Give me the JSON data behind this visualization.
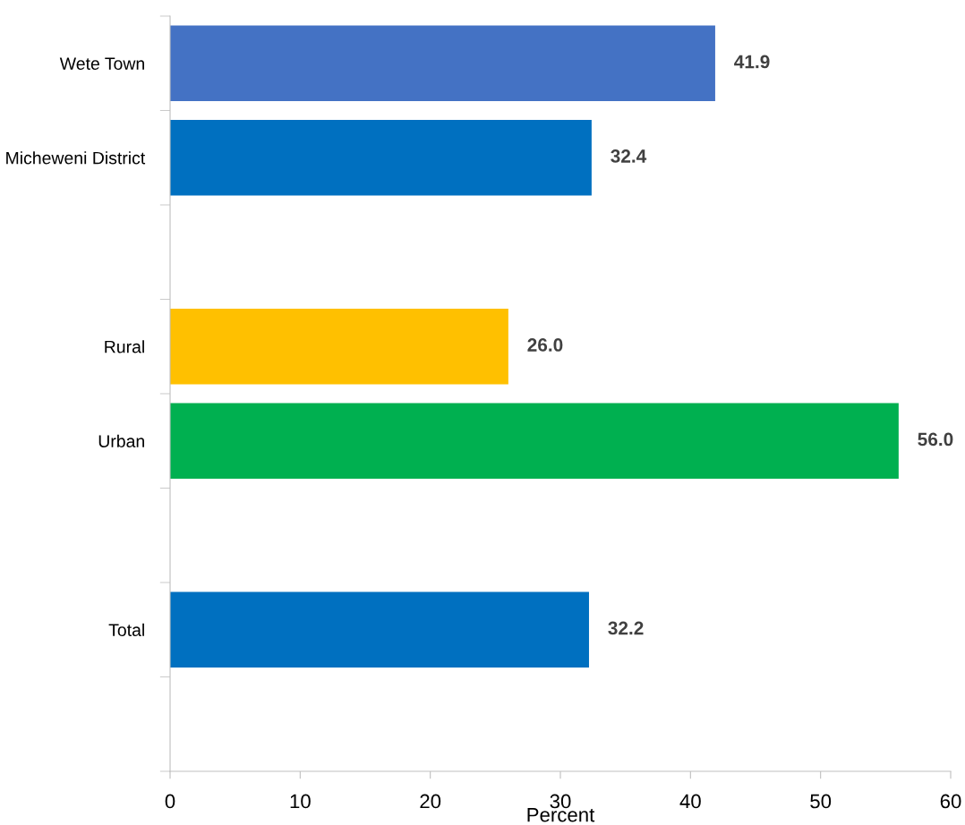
{
  "chart_data": {
    "type": "bar",
    "orientation": "horizontal",
    "xlabel": "Percent",
    "categories": [
      "Wete Town",
      "Micheweni District",
      null,
      "Rural",
      "Urban",
      null,
      "Total",
      null
    ],
    "values": [
      41.9,
      32.4,
      null,
      26.0,
      56.0,
      null,
      32.2,
      null
    ],
    "colors": [
      "#4472c4",
      "#0070c0",
      "#0070c0",
      "#ffc000",
      "#00b050",
      "#0070c0",
      "#0070c0",
      "#0070c0"
    ],
    "value_labels": [
      "41.9",
      "32.4",
      null,
      "26.0",
      "56.0",
      null,
      "32.2",
      null
    ],
    "xlim": [
      0,
      60
    ],
    "xticks": [
      0,
      10,
      20,
      30,
      40,
      50,
      60
    ],
    "grid": false,
    "legend": false
  }
}
